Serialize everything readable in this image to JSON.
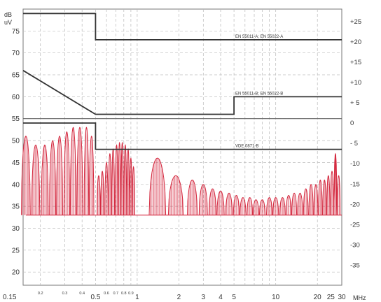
{
  "chart_data": {
    "type": "line",
    "title": "",
    "xlabel": "",
    "ylabel": "",
    "y_unit_lines": [
      "dB",
      "uV"
    ],
    "x_unit": "MHz",
    "x_scale": "log",
    "xlim": [
      0.15,
      30
    ],
    "ylim": [
      17,
      80
    ],
    "y2lim": [
      -40,
      28
    ],
    "x_tick_labels": [
      {
        "value": 0.15,
        "label": "0.15",
        "size": "major"
      },
      {
        "value": 0.2,
        "label": "0.2",
        "size": "minor"
      },
      {
        "value": 0.3,
        "label": "0.3",
        "size": "minor"
      },
      {
        "value": 0.4,
        "label": "0.4",
        "size": "minor"
      },
      {
        "value": 0.5,
        "label": "0.5",
        "size": "major"
      },
      {
        "value": 0.6,
        "label": "0.6",
        "size": "minor"
      },
      {
        "value": 0.7,
        "label": "0.7",
        "size": "minor"
      },
      {
        "value": 0.8,
        "label": "0.8",
        "size": "minor"
      },
      {
        "value": 0.9,
        "label": "0.9",
        "size": "minor"
      },
      {
        "value": 1,
        "label": "1",
        "size": "major"
      },
      {
        "value": 2,
        "label": "2",
        "size": "major"
      },
      {
        "value": 3,
        "label": "3",
        "size": "major"
      },
      {
        "value": 4,
        "label": "4",
        "size": "major"
      },
      {
        "value": 5,
        "label": "5",
        "size": "major"
      },
      {
        "value": 10,
        "label": "10",
        "size": "major"
      },
      {
        "value": 20,
        "label": "20",
        "size": "major"
      },
      {
        "value": 25,
        "label": "25",
        "size": "major"
      },
      {
        "value": 30,
        "label": "30",
        "size": "major"
      }
    ],
    "x_gridlines": [
      0.2,
      0.3,
      0.4,
      0.5,
      0.6,
      0.7,
      0.8,
      0.9,
      1,
      2,
      3,
      4,
      5,
      6,
      7,
      8,
      9,
      10,
      20
    ],
    "y_ticks_left": [
      20,
      25,
      30,
      35,
      40,
      45,
      50,
      55,
      60,
      65,
      70,
      75
    ],
    "y_ticks_right": [
      "+25",
      "+20",
      "+15",
      "+10",
      "+ 5",
      "0",
      "- 5",
      "-10",
      "-15",
      "-20",
      "-25",
      "-30",
      "-35"
    ],
    "y_ticks_right_values": [
      25,
      20,
      15,
      10,
      5,
      0,
      -5,
      -10,
      -15,
      -20,
      -25,
      -30,
      -35
    ],
    "grid": true,
    "legend": "none",
    "limit_lines": [
      {
        "label": "EN 55011-A; EN 55022-A",
        "color": "#333333",
        "points": [
          [
            0.15,
            79
          ],
          [
            0.5,
            79
          ],
          [
            0.5,
            73
          ],
          [
            30,
            73
          ]
        ]
      },
      {
        "label": "EN 55011-B; EN 55022-B",
        "color": "#333333",
        "points": [
          [
            0.15,
            66
          ],
          [
            0.5,
            56
          ],
          [
            5,
            56
          ],
          [
            5,
            60
          ],
          [
            30,
            60
          ]
        ]
      },
      {
        "label": "VDE 0871-B",
        "color": "#333333",
        "points": [
          [
            0.15,
            54
          ],
          [
            0.5,
            54
          ],
          [
            0.5,
            48
          ],
          [
            30,
            48
          ]
        ]
      }
    ],
    "reference_line": {
      "value": 55,
      "color": "#666666"
    },
    "emission": {
      "color": "#d42a40",
      "baseline": 33,
      "end_noise_peak": {
        "x": 27,
        "y": 47
      },
      "harmonics_mhz": [
        0.157,
        0.185,
        0.215,
        0.245,
        0.275,
        0.31,
        0.345,
        0.385,
        0.43,
        0.468,
        0.527,
        0.56,
        0.6,
        0.635,
        0.67,
        0.71,
        0.745,
        0.78,
        0.82,
        0.86,
        0.9,
        0.94,
        1.4,
        1.9,
        2.5,
        3.0,
        3.5,
        4.0,
        4.6,
        5.2,
        5.8,
        6.5,
        7.2,
        8.0,
        9.0,
        10.0,
        11.2,
        12.4,
        13.6,
        15.0,
        16.5,
        18.0,
        19.5,
        21.0,
        22.5,
        24.0,
        25.5,
        27.0,
        28.5
      ],
      "peak_envelope_dbuv": [
        51,
        49,
        49,
        50,
        51,
        52,
        53,
        53,
        53,
        51,
        42,
        43,
        45,
        47,
        48,
        49,
        49.5,
        49.5,
        49,
        48,
        46,
        44,
        46,
        42,
        41,
        40,
        39,
        38.5,
        38,
        37.5,
        37,
        37,
        36.5,
        36.5,
        37,
        37,
        37,
        37.5,
        38,
        38,
        39,
        40,
        40,
        41,
        41,
        42,
        43,
        47,
        42
      ]
    }
  }
}
